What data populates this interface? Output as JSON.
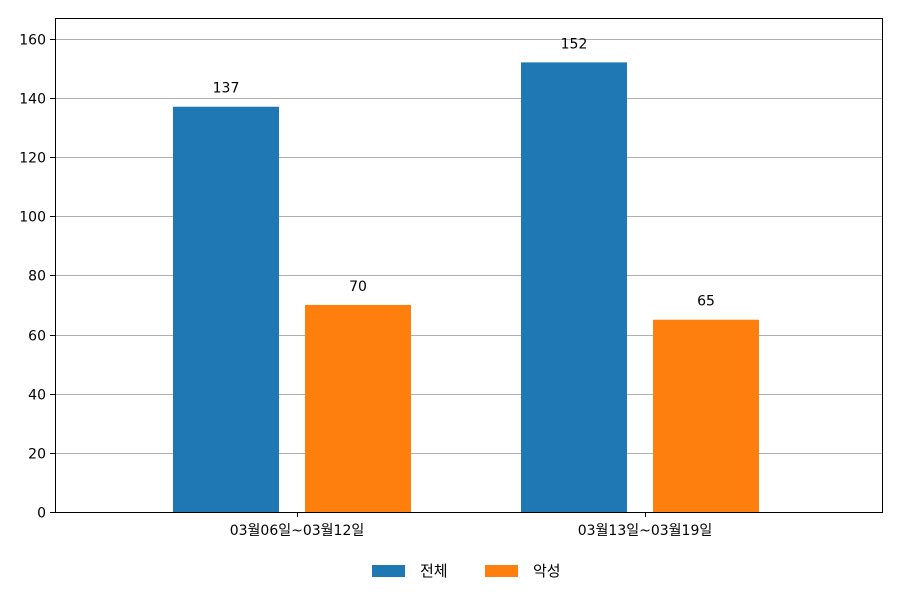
{
  "chart_data": {
    "type": "bar",
    "categories": [
      "03월06일~03월12일",
      "03월13일~03월19일"
    ],
    "series": [
      {
        "name": "전체",
        "values": [
          137,
          152
        ],
        "color": "#1f77b4"
      },
      {
        "name": "악성",
        "values": [
          70,
          65
        ],
        "color": "#ff7f0e"
      }
    ],
    "ylim": [
      0,
      167
    ],
    "yticks": [
      0,
      20,
      40,
      60,
      80,
      100,
      120,
      140,
      160
    ],
    "grid": "y",
    "legend_position": "bottom-center",
    "show_value_labels": true
  }
}
